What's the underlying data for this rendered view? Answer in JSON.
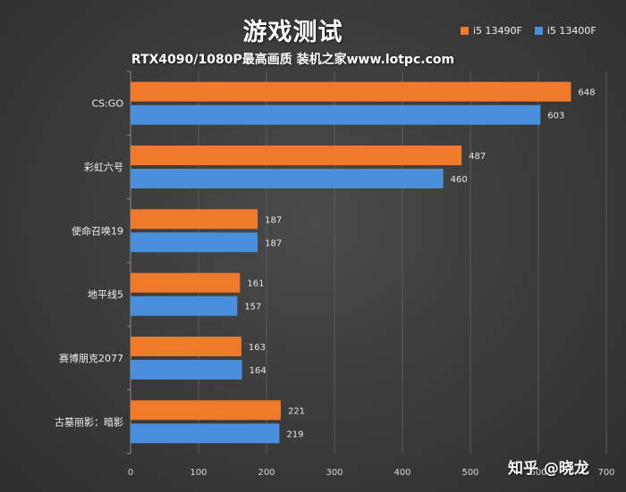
{
  "chart_data": {
    "type": "bar",
    "orientation": "horizontal",
    "title": "游戏测试",
    "subtitle": "RTX4090/1080P最高画质 装机之家www.lotpc.com",
    "categories": [
      "CS:GO",
      "彩虹六号",
      "使命召唤19",
      "地平线5",
      "赛博朋克2077",
      "古墓丽影：暗影"
    ],
    "series": [
      {
        "name": "i5 13490F",
        "color": "#f07a2c",
        "values": [
          648,
          487,
          187,
          161,
          163,
          221
        ]
      },
      {
        "name": "i5 13400F",
        "color": "#4a8fdc",
        "values": [
          603,
          460,
          187,
          157,
          164,
          219
        ]
      }
    ],
    "xlim": [
      0,
      700
    ],
    "xticks": [
      "0",
      "100",
      "200",
      "300",
      "400",
      "500",
      "600",
      "700"
    ],
    "grid": true,
    "legend": "top-right",
    "data_labels": true
  },
  "watermark": "知乎 @晓龙"
}
